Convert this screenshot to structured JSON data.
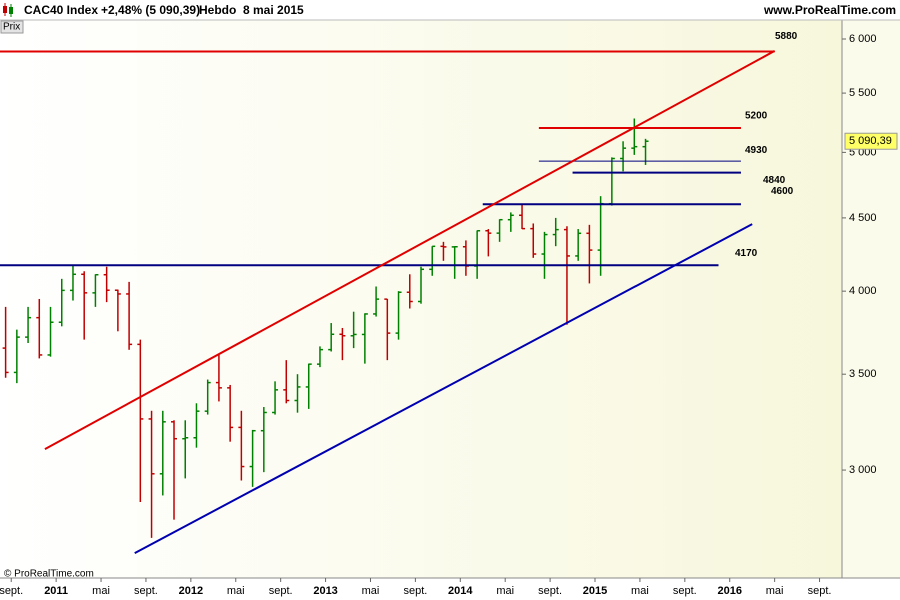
{
  "header": {
    "instrument": "CAC40 Index",
    "change": "+2,48% (5 090,39)",
    "period": "Hebdo",
    "date": "8 mai 2015",
    "site": "www.ProRealTime.com",
    "panel": "Prix",
    "copyright": "© ProRealTime.com"
  },
  "chart_data": {
    "type": "ohlc",
    "x": [
      "2010-08",
      "2010-09",
      "2010-10",
      "2010-11",
      "2010-12",
      "2011-01",
      "2011-02",
      "2011-03",
      "2011-04",
      "2011-05",
      "2011-06",
      "2011-07",
      "2011-08",
      "2011-09",
      "2011-10",
      "2011-11",
      "2011-12",
      "2012-01",
      "2012-02",
      "2012-03",
      "2012-04",
      "2012-05",
      "2012-06",
      "2012-07",
      "2012-08",
      "2012-09",
      "2012-10",
      "2012-11",
      "2012-12",
      "2013-01",
      "2013-02",
      "2013-03",
      "2013-04",
      "2013-05",
      "2013-06",
      "2013-07",
      "2013-08",
      "2013-09",
      "2013-10",
      "2013-11",
      "2013-12",
      "2014-01",
      "2014-02",
      "2014-03",
      "2014-04",
      "2014-05",
      "2014-06",
      "2014-07",
      "2014-08",
      "2014-09",
      "2014-10",
      "2014-11",
      "2014-12",
      "2015-01",
      "2015-02",
      "2015-03",
      "2015-04",
      "2015-05"
    ],
    "open": [
      3650,
      3510,
      3715,
      3833,
      3610,
      3805,
      4005,
      4110,
      3989,
      4107,
      4006,
      3982,
      3672,
      3257,
      2982,
      3242,
      3155,
      3160,
      3298,
      3453,
      3424,
      3213,
      3017,
      3196,
      3291,
      3413,
      3355,
      3429,
      3557,
      3641,
      3732,
      3723,
      3731,
      3856,
      3949,
      3739,
      3993,
      3934,
      4143,
      4299,
      4295,
      4296,
      4165,
      4408,
      4391,
      4487,
      4519,
      4423,
      4246,
      4381,
      4416,
      4233,
      4390,
      4273,
      4604,
      4951,
      5034,
      5046
    ],
    "high": [
      3900,
      3760,
      3900,
      3950,
      3900,
      4080,
      4170,
      4130,
      4110,
      4160,
      4010,
      4060,
      3700,
      3300,
      3300,
      3250,
      3250,
      3340,
      3470,
      3610,
      3440,
      3300,
      3200,
      3320,
      3460,
      3580,
      3500,
      3560,
      3660,
      3800,
      3770,
      3870,
      3860,
      4030,
      3950,
      4000,
      4110,
      4160,
      4300,
      4330,
      4300,
      4340,
      4410,
      4420,
      4490,
      4540,
      4600,
      4460,
      4400,
      4500,
      4440,
      4420,
      4450,
      4660,
      4960,
      5090,
      5280,
      5110
    ],
    "low": [
      3480,
      3450,
      3680,
      3590,
      3600,
      3780,
      3940,
      3700,
      3900,
      3930,
      3750,
      3640,
      2850,
      2690,
      2880,
      2770,
      2960,
      3110,
      3280,
      3350,
      3140,
      2950,
      2920,
      2990,
      3280,
      3340,
      3290,
      3310,
      3540,
      3630,
      3580,
      3650,
      3560,
      3840,
      3580,
      3700,
      3890,
      3920,
      4100,
      4200,
      4080,
      4100,
      4080,
      4230,
      4330,
      4400,
      4420,
      4220,
      4080,
      4300,
      3790,
      4200,
      4050,
      4100,
      4590,
      4850,
      4980,
      4900
    ],
    "close": [
      3510,
      3715,
      3833,
      3610,
      3805,
      4005,
      4110,
      3989,
      4107,
      4006,
      3982,
      3672,
      3257,
      2982,
      3242,
      3155,
      3160,
      3298,
      3453,
      3424,
      3213,
      3017,
      3196,
      3291,
      3413,
      3355,
      3429,
      3557,
      3641,
      3732,
      3723,
      3731,
      3856,
      3949,
      3739,
      3993,
      3934,
      4143,
      4299,
      4295,
      4296,
      4165,
      4408,
      4391,
      4487,
      4519,
      4423,
      4246,
      4381,
      4416,
      4233,
      4390,
      4273,
      4604,
      4951,
      5034,
      5046,
      5090.39
    ],
    "up_color": "#008000",
    "down_color": "#c00000",
    "xlim": [
      "2010-08",
      "2016-11"
    ],
    "xticks": [
      {
        "value": "2010-09",
        "label": "sept."
      },
      {
        "value": "2011-01",
        "label": "2011"
      },
      {
        "value": "2011-05",
        "label": "mai"
      },
      {
        "value": "2011-09",
        "label": "sept."
      },
      {
        "value": "2012-01",
        "label": "2012"
      },
      {
        "value": "2012-05",
        "label": "mai"
      },
      {
        "value": "2012-09",
        "label": "sept."
      },
      {
        "value": "2013-01",
        "label": "2013"
      },
      {
        "value": "2013-05",
        "label": "mai"
      },
      {
        "value": "2013-09",
        "label": "sept."
      },
      {
        "value": "2014-01",
        "label": "2014"
      },
      {
        "value": "2014-05",
        "label": "mai"
      },
      {
        "value": "2014-09",
        "label": "sept."
      },
      {
        "value": "2015-01",
        "label": "2015"
      },
      {
        "value": "2015-05",
        "label": "mai"
      },
      {
        "value": "2015-09",
        "label": "sept."
      },
      {
        "value": "2016-01",
        "label": "2016"
      },
      {
        "value": "2016-05",
        "label": "mai"
      },
      {
        "value": "2016-09",
        "label": "sept."
      }
    ],
    "ylim": [
      2522,
      6186
    ],
    "log_scale": true,
    "yticks": [
      {
        "value": 3000,
        "label": "3 000"
      },
      {
        "value": 3500,
        "label": "3 500"
      },
      {
        "value": 4000,
        "label": "4 000"
      },
      {
        "value": 4500,
        "label": "4 500"
      },
      {
        "value": 5000,
        "label": "5 000"
      },
      {
        "value": 5500,
        "label": "5 500"
      },
      {
        "value": 6000,
        "label": "6 000"
      }
    ],
    "last": {
      "value": 5090.39,
      "label": "5 090,39"
    },
    "levels": [
      {
        "value": 5880,
        "from": "2010-08",
        "to": "2016-05",
        "color": "#e00000"
      },
      {
        "value": 5200,
        "from": "2014-08",
        "to": "2016-02",
        "color": "#e00000"
      },
      {
        "value": 4930,
        "from": "2014-08",
        "to": "2016-02",
        "color": "#000080"
      },
      {
        "value": 4840,
        "from": "2014-11",
        "to": "2016-02",
        "color": "#000080"
      },
      {
        "value": 4600,
        "from": "2014-03",
        "to": "2016-02",
        "color": "#000080"
      },
      {
        "value": 4170,
        "from": "2010-08",
        "to": "2015-12",
        "color": "#000080"
      }
    ],
    "trendlines": [
      {
        "color": "#e00000",
        "x": [
          "2010-12",
          "2016-05"
        ],
        "values": [
          3103,
          5886
        ]
      },
      {
        "color": "#0000b0",
        "x": [
          "2011-08",
          "2016-03"
        ],
        "values": [
          2625,
          4455
        ]
      }
    ]
  }
}
